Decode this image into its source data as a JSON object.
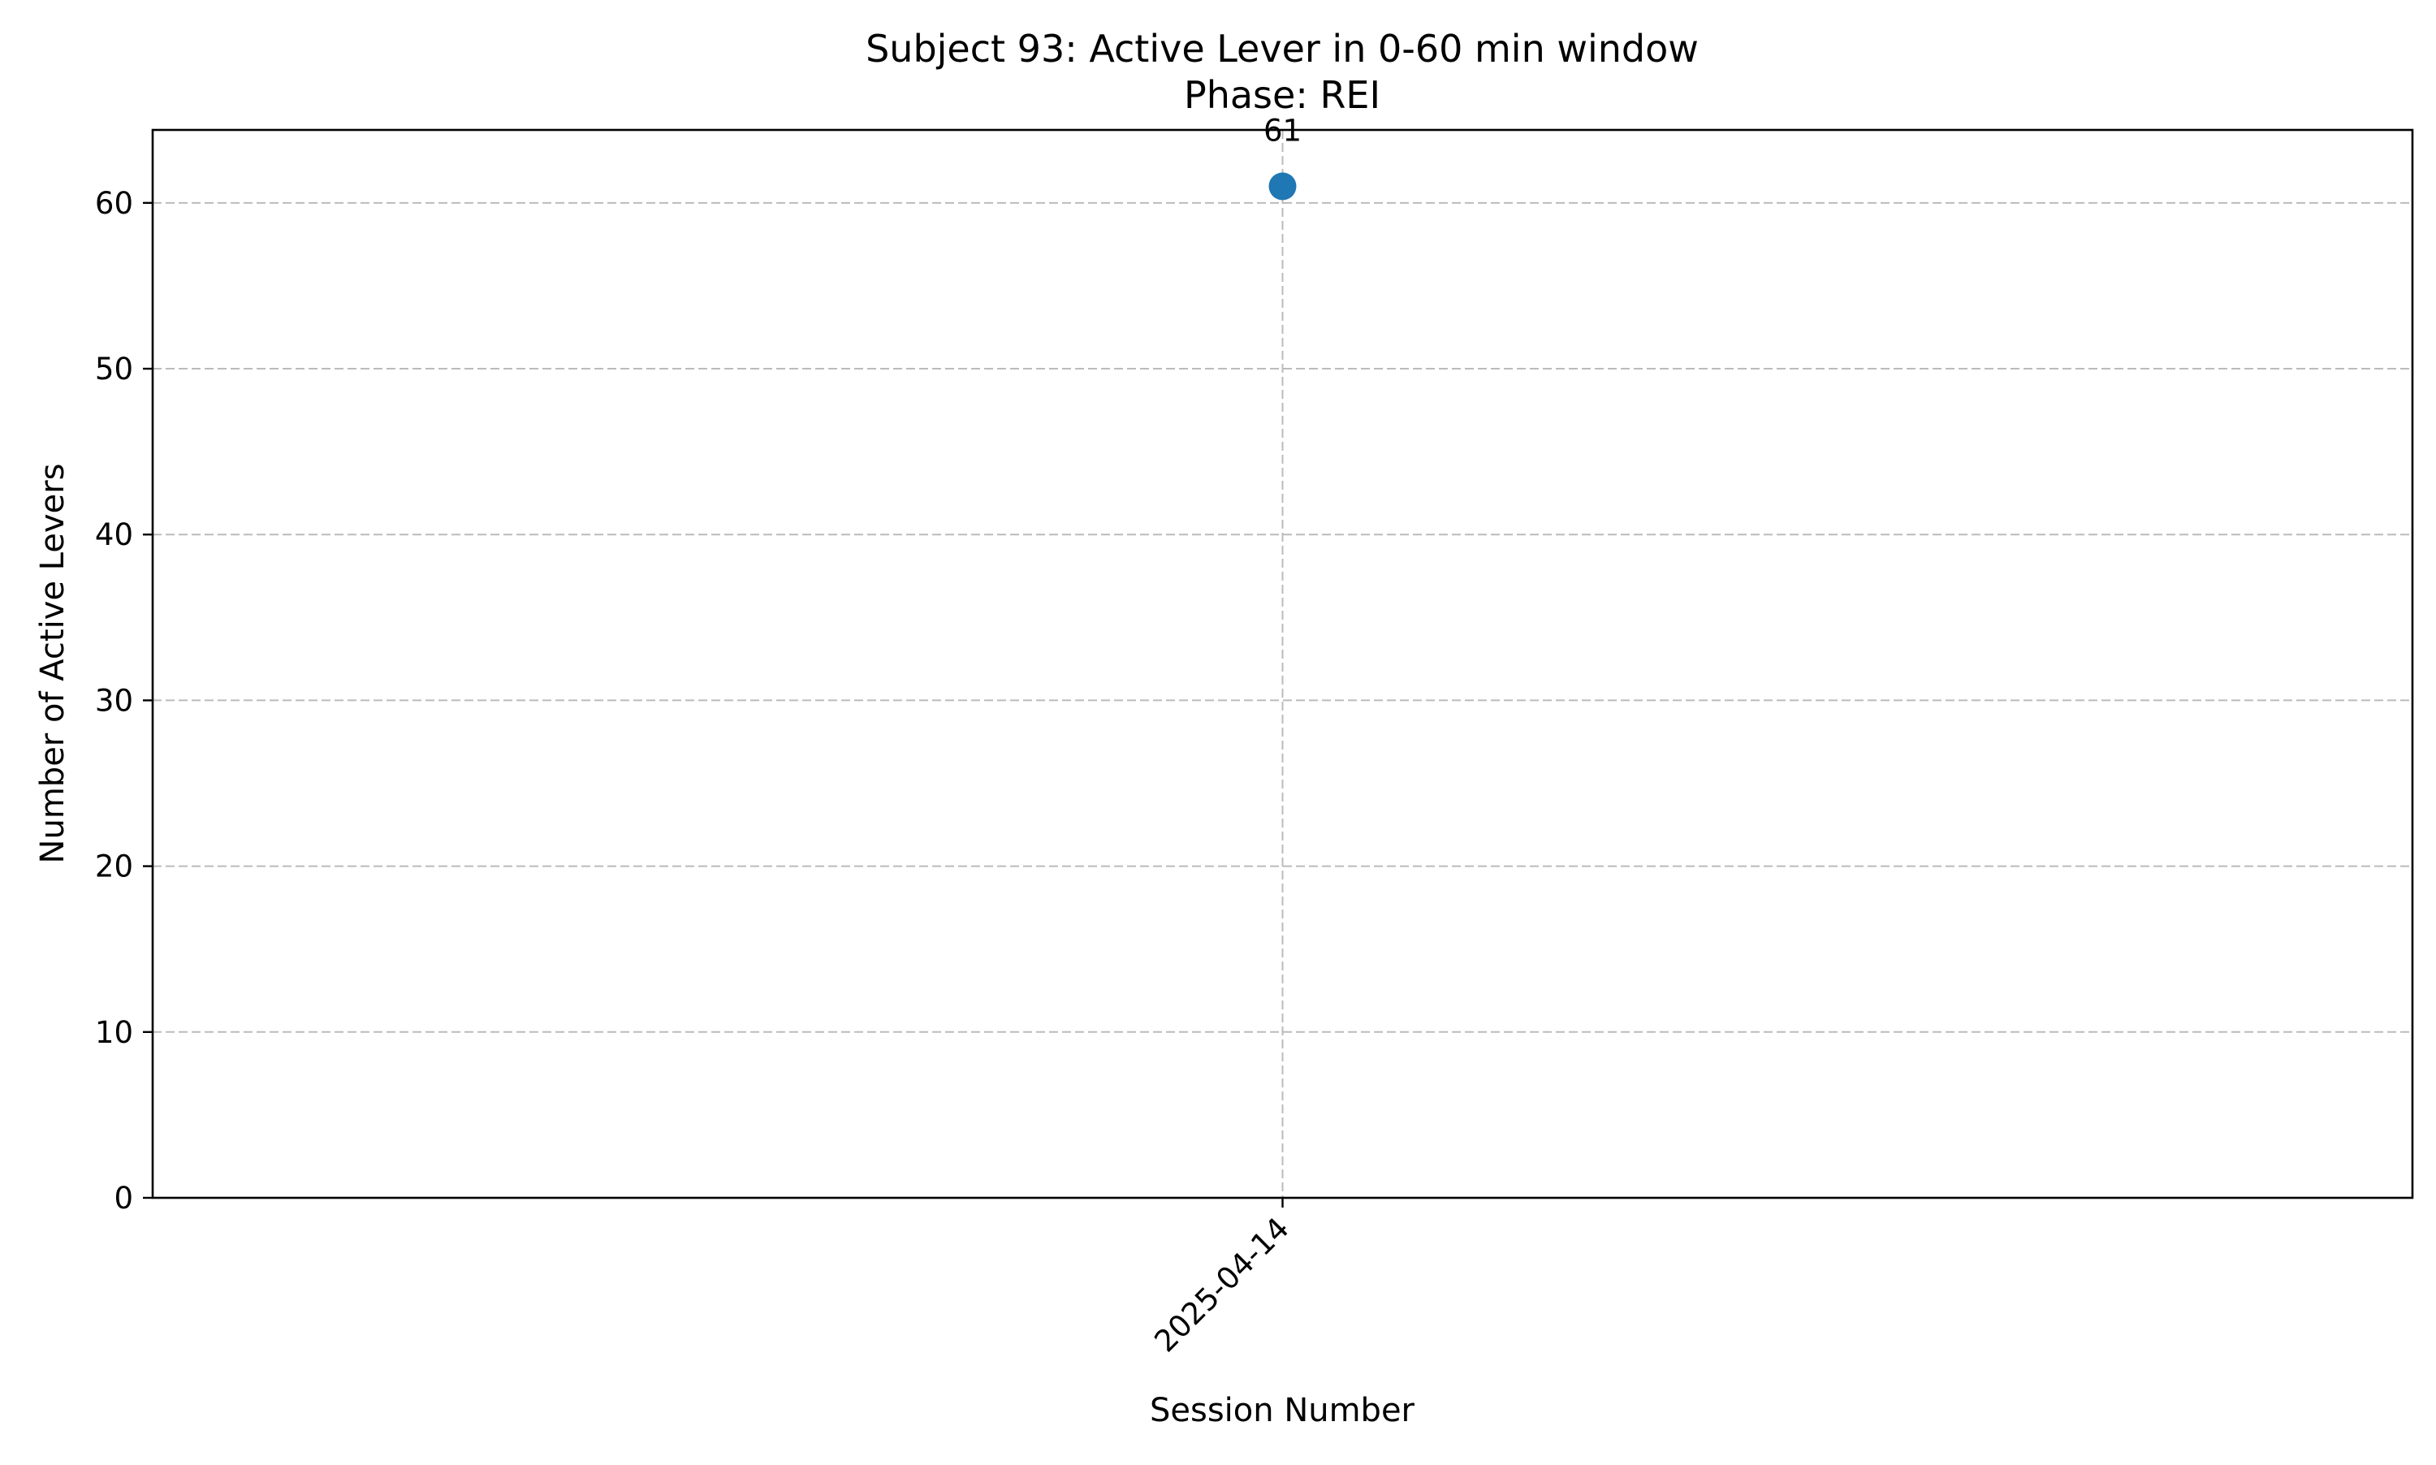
{
  "chart_data": {
    "type": "scatter",
    "title": "Subject 93: Active Lever in 0-60 min window",
    "subtitle": "Phase: REI",
    "xlabel": "Session Number",
    "ylabel": "Number of Active Levers",
    "categories": [
      "2025-04-14"
    ],
    "series": [
      {
        "values": [
          61
        ],
        "color": "#1f77b4",
        "marker": "circle"
      }
    ],
    "data_labels": [
      "61"
    ],
    "ylim": [
      0,
      64.4
    ],
    "yticks": [
      0,
      10,
      20,
      30,
      40,
      50,
      60
    ],
    "xlim": [
      -1,
      1
    ],
    "grid": true,
    "legend": "none"
  }
}
